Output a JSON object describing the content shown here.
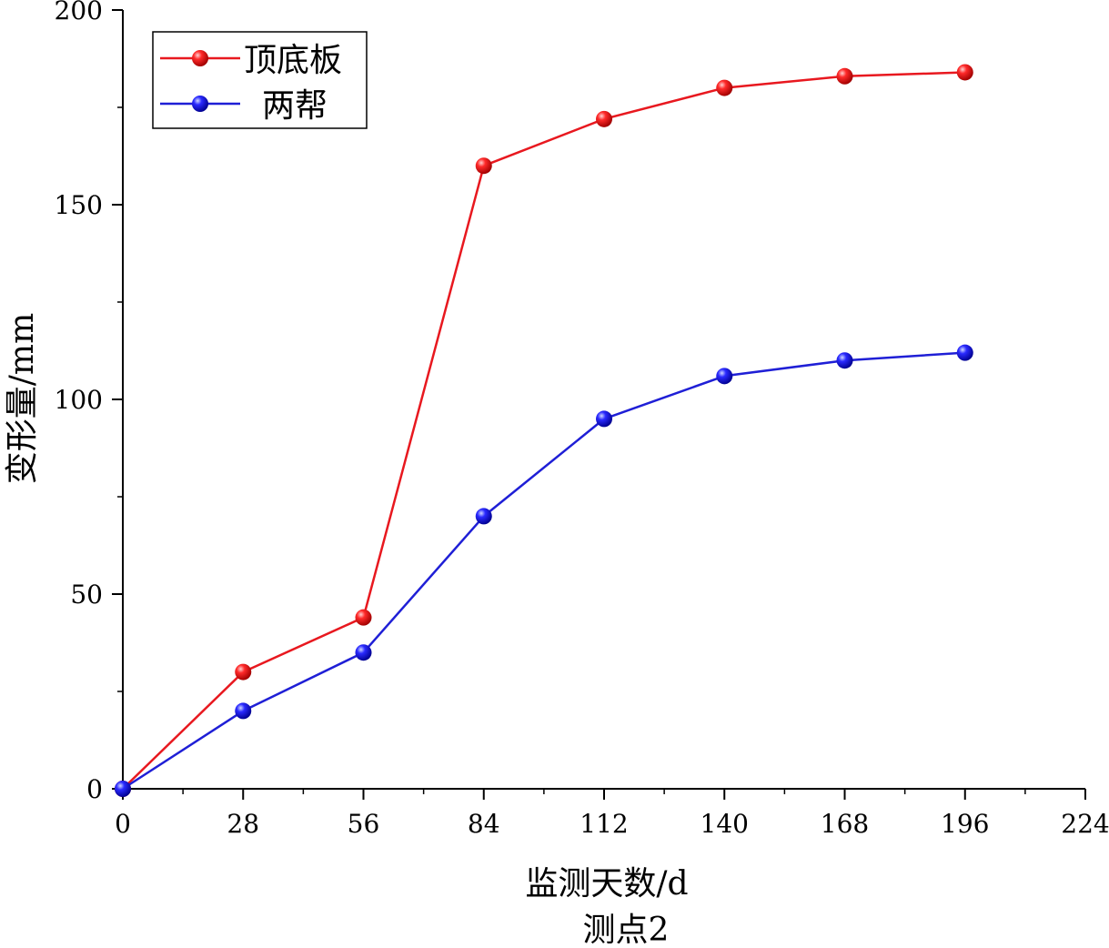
{
  "chart_data": {
    "type": "line",
    "xlabel": "监测天数/d",
    "ylabel": "变形量/mm",
    "caption": "测点2",
    "xlim": [
      0,
      224
    ],
    "ylim": [
      0,
      200
    ],
    "x_ticks": [
      "0",
      "28",
      "56",
      "84",
      "112",
      "140",
      "168",
      "196",
      "224"
    ],
    "y_ticks": [
      "0",
      "50",
      "100",
      "150",
      "200"
    ],
    "grid": false,
    "legend_position": "top-left",
    "x": [
      0,
      28,
      56,
      84,
      112,
      140,
      168,
      196
    ],
    "series": [
      {
        "name": "顶底板",
        "color": "#e8181f",
        "values": [
          0,
          30,
          44,
          160,
          172,
          180,
          183,
          184
        ]
      },
      {
        "name": "两帮",
        "color": "#1f1fd6",
        "values": [
          0,
          20,
          35,
          70,
          95,
          106,
          110,
          112
        ]
      }
    ]
  }
}
